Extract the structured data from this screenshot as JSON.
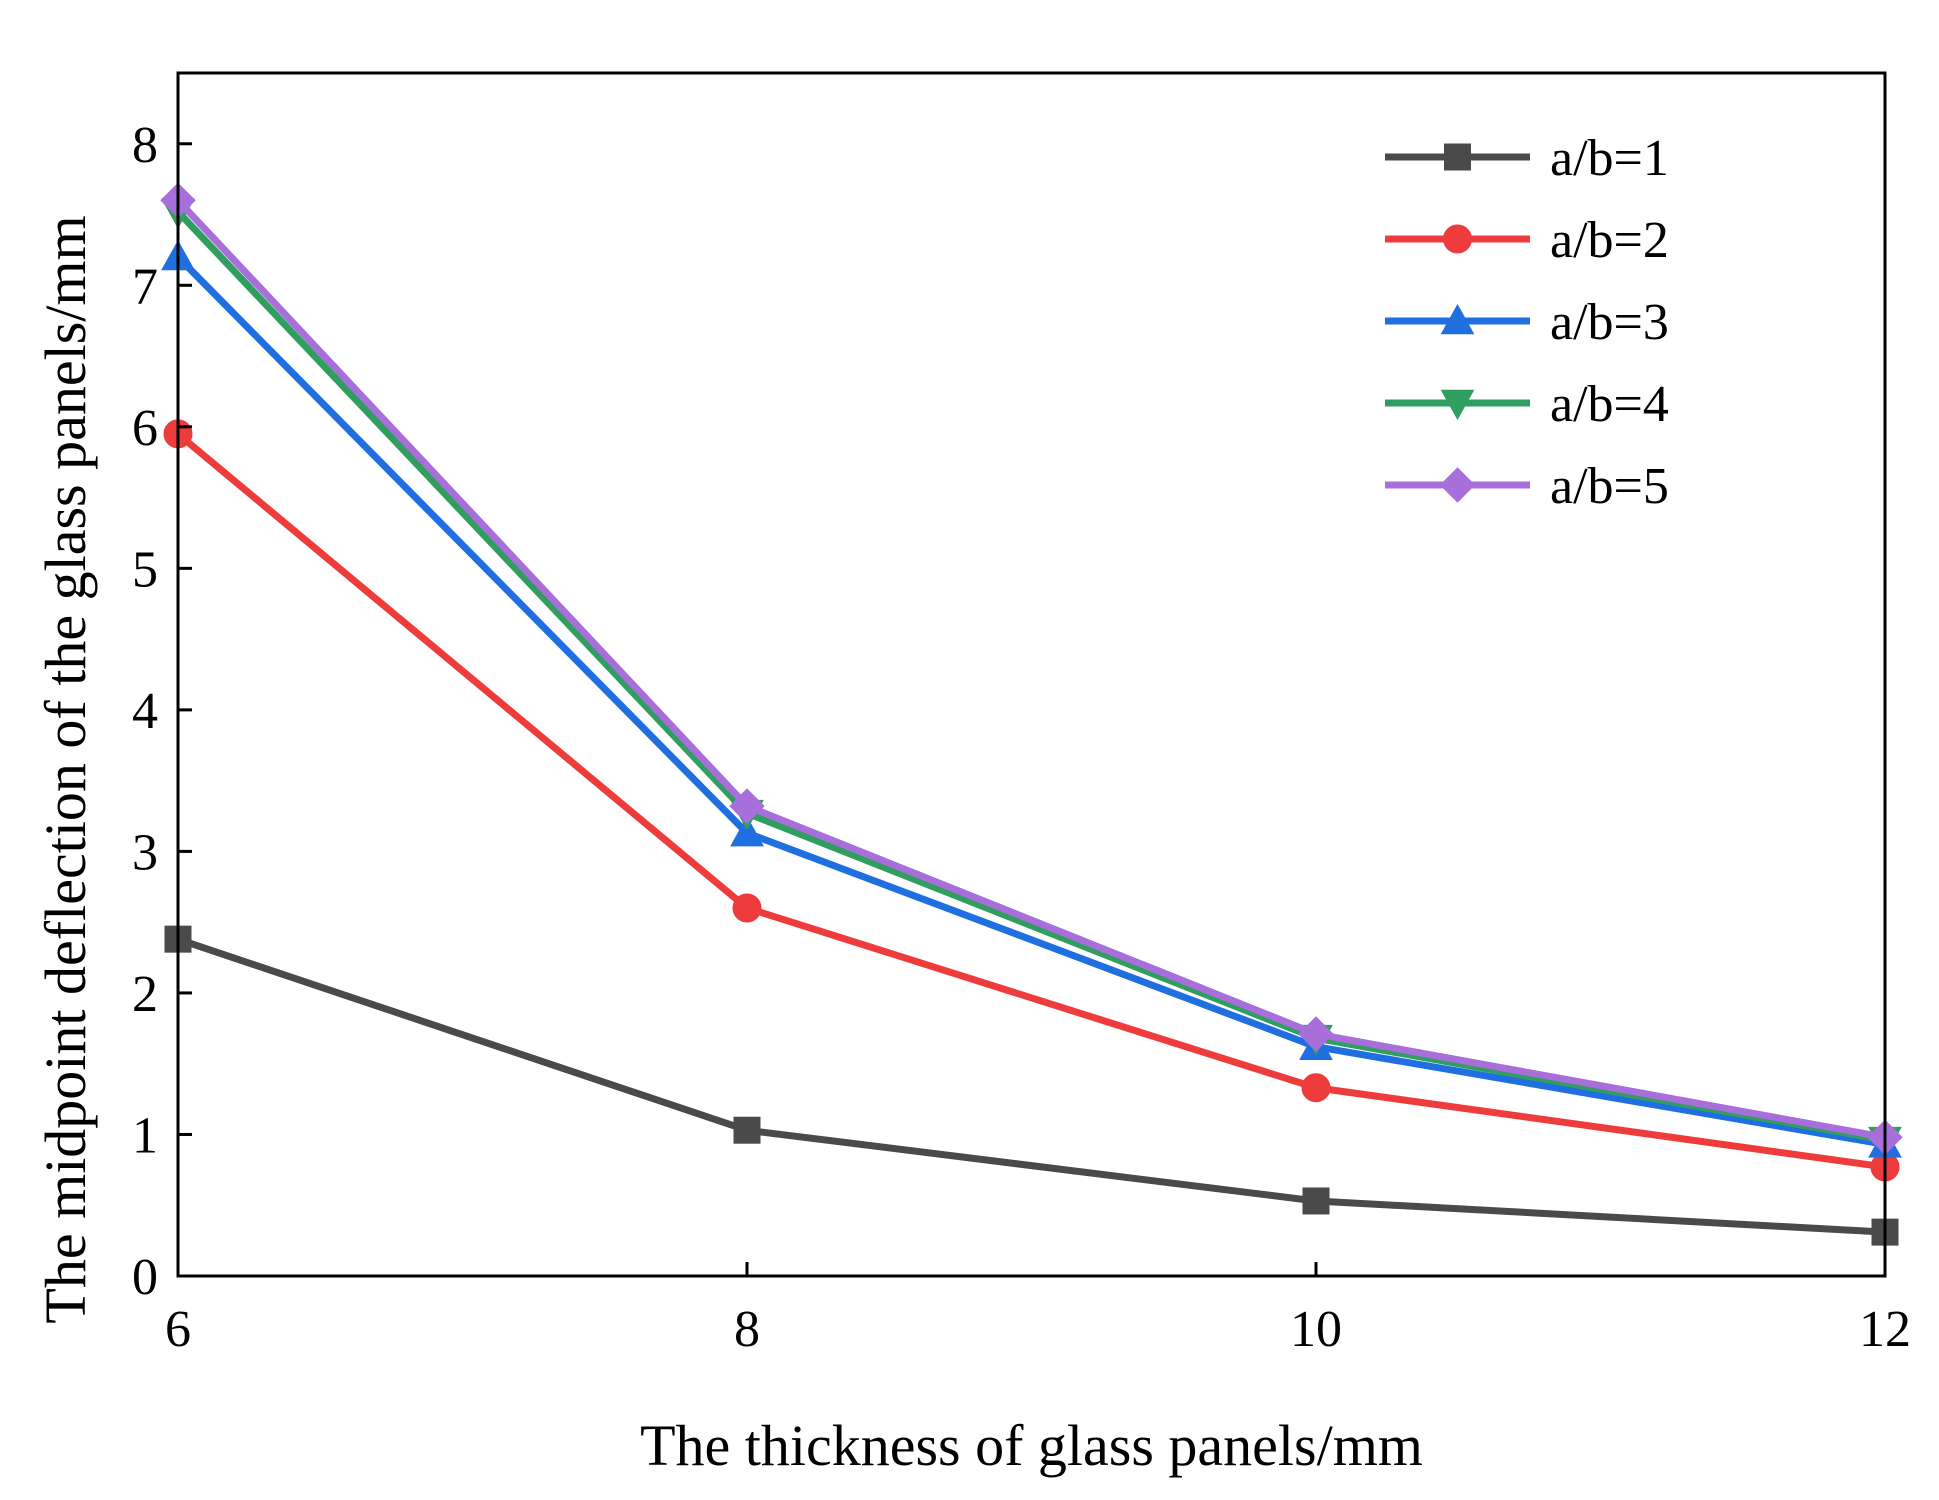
{
  "chart_data": {
    "type": "line",
    "title": "",
    "xlabel": "The thickness of glass panels/mm",
    "ylabel": "The midpoint deflection of the glass panels/mm",
    "x": [
      6,
      8,
      10,
      12
    ],
    "xticks": [
      "6",
      "8",
      "10",
      "12"
    ],
    "xlim": [
      6,
      12
    ],
    "yticks": [
      "0",
      "1",
      "2",
      "3",
      "4",
      "5",
      "6",
      "7",
      "8"
    ],
    "ylim": [
      0,
      8.5
    ],
    "grid": false,
    "legend_position": "top-right",
    "series": [
      {
        "name": "a/b=1",
        "marker": "square",
        "color": "#4a4a4a",
        "values": [
          2.38,
          1.03,
          0.53,
          0.31
        ]
      },
      {
        "name": "a/b=2",
        "marker": "circle",
        "color": "#ee3b3b",
        "values": [
          5.95,
          2.6,
          1.33,
          0.77
        ]
      },
      {
        "name": "a/b=3",
        "marker": "triangle-up",
        "color": "#1f6fe0",
        "values": [
          7.2,
          3.13,
          1.62,
          0.93
        ]
      },
      {
        "name": "a/b=4",
        "marker": "triangle-down",
        "color": "#2f9e5f",
        "values": [
          7.52,
          3.27,
          1.68,
          0.96
        ]
      },
      {
        "name": "a/b=5",
        "marker": "diamond",
        "color": "#a86fdb",
        "values": [
          7.6,
          3.32,
          1.71,
          0.98
        ]
      }
    ]
  }
}
